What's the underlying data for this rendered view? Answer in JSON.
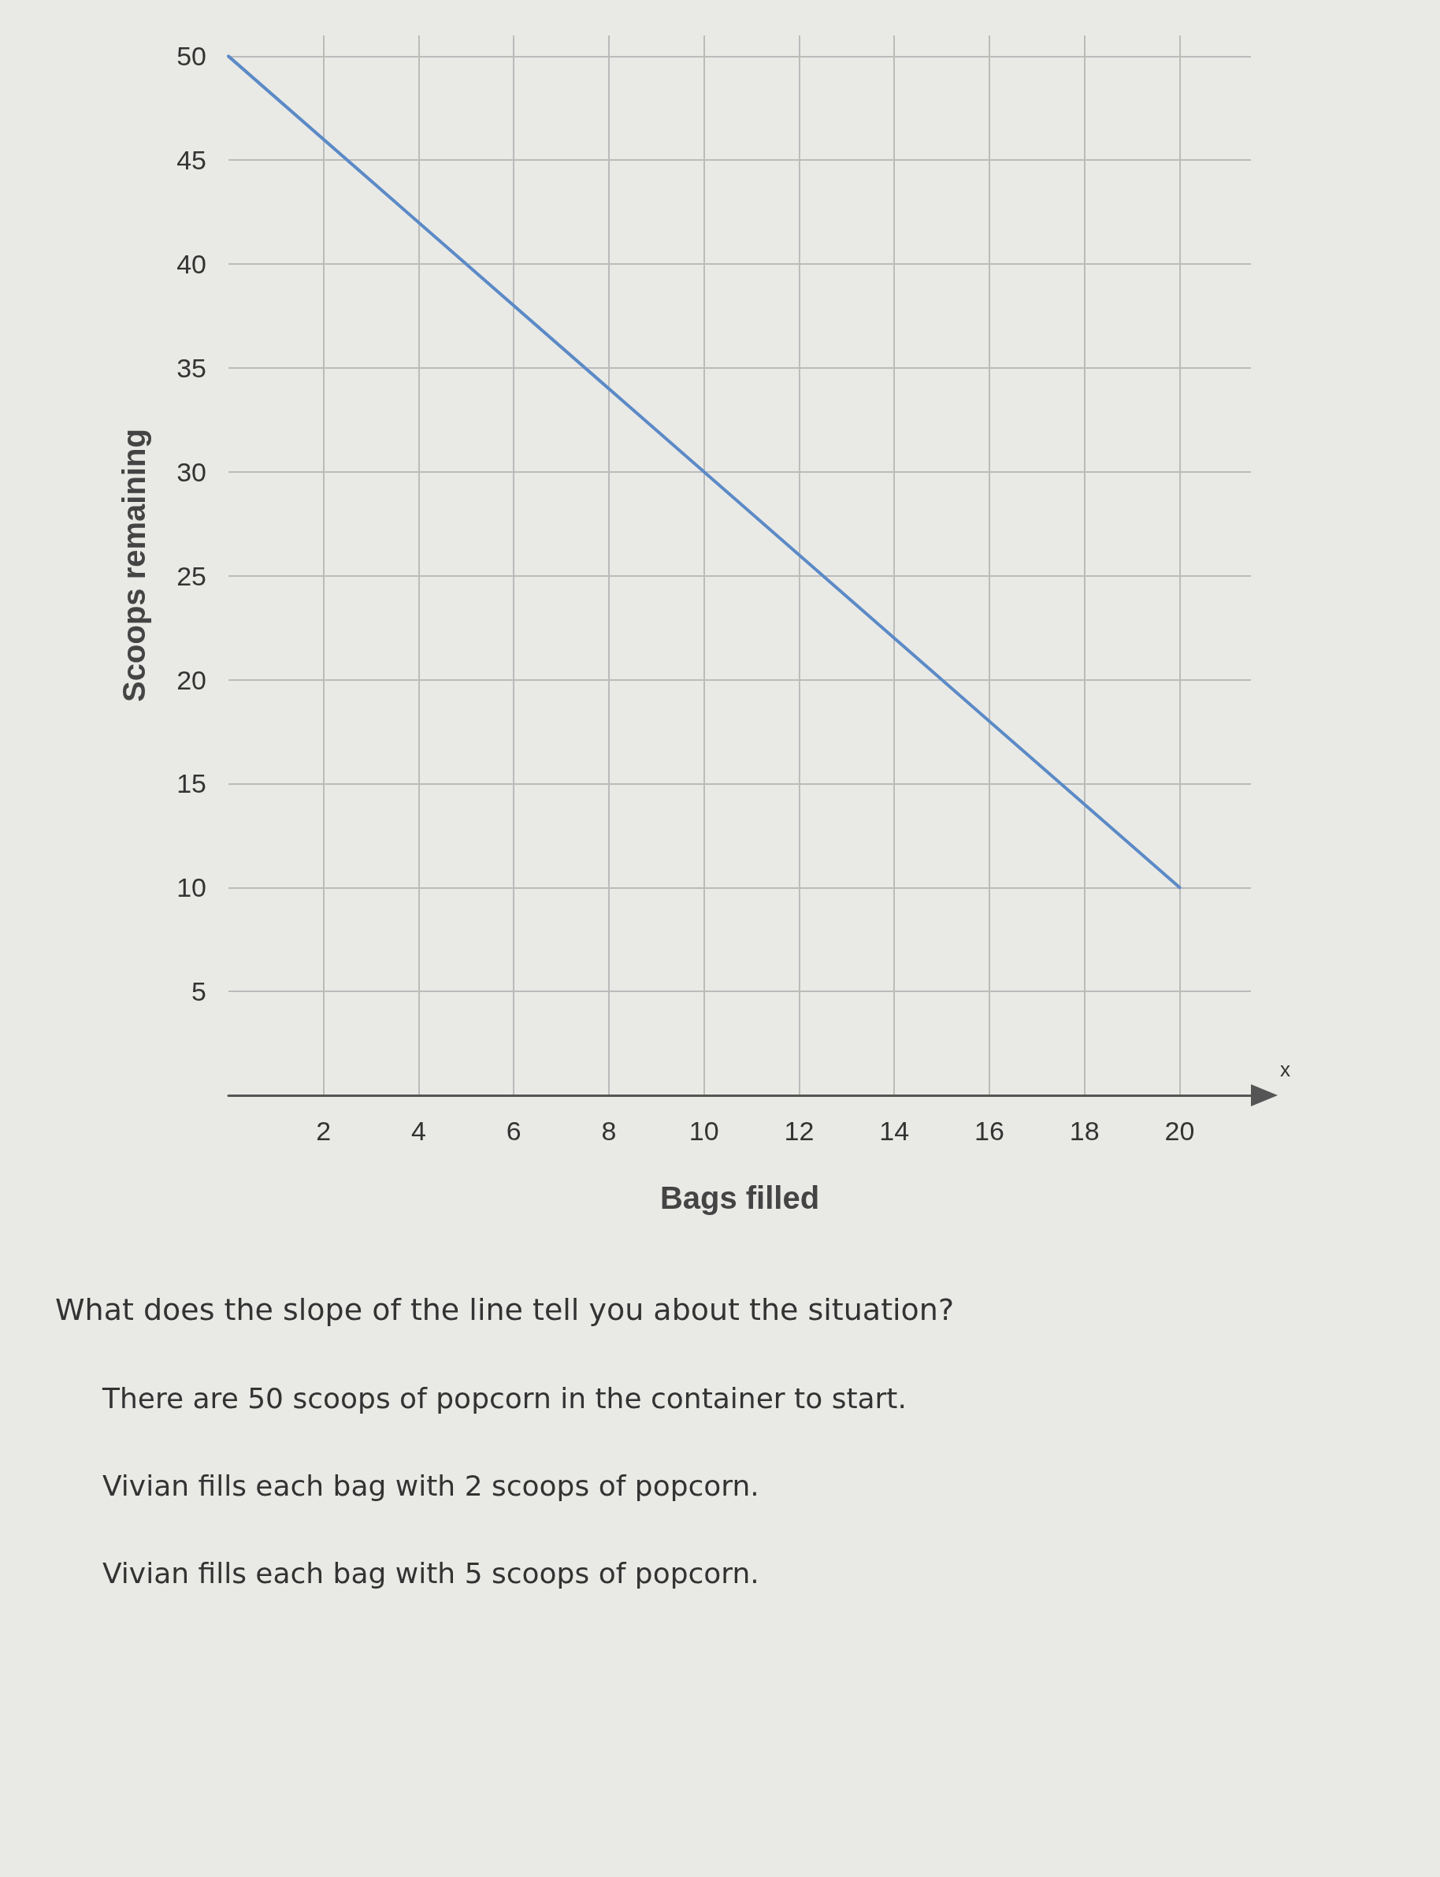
{
  "chart_data": {
    "type": "line",
    "xlabel": "Bags filled",
    "ylabel": "Scoops remaining",
    "x": [
      0,
      20
    ],
    "series": [
      {
        "color": "#5b8ac6",
        "values": [
          50,
          10
        ]
      }
    ],
    "xlim": [
      0,
      21.5
    ],
    "xticks": [
      2,
      4,
      6,
      8,
      10,
      12,
      14,
      16,
      18,
      20
    ],
    "ylim": [
      0,
      51
    ],
    "yticks": [
      5,
      10,
      15,
      20,
      25,
      30,
      35,
      40,
      45,
      50
    ],
    "grid": true,
    "marker": "none",
    "line_style": "solid",
    "annotations": [
      "x",
      "What does the slope of the line tell you about the situation?",
      "There are 50 scoops of popcorn in the container to start.",
      "Vivian fills each bag with 2 scoops of popcorn.",
      "Vivian fills each bag with 5 scoops of popcorn."
    ]
  }
}
